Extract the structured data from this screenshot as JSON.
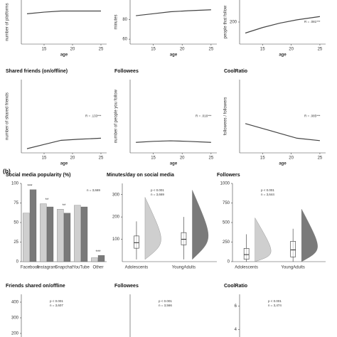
{
  "panel_label": "(b)",
  "chart_data": [
    {
      "type": "line",
      "ylabel": "number of platforms",
      "xlabel": "age",
      "xlim": [
        11,
        26
      ],
      "xticks": [
        15,
        20,
        25
      ],
      "ylim": [
        0,
        8
      ],
      "yticks": [],
      "x": [
        12,
        15,
        18,
        21,
        25
      ],
      "values": [
        5.5,
        5.8,
        6,
        6,
        6
      ],
      "color": "#444"
    },
    {
      "type": "line",
      "ylabel": "minutes",
      "xlabel": "age",
      "xlim": [
        11,
        26
      ],
      "xticks": [
        15,
        20,
        25
      ],
      "ylim": [
        55,
        100
      ],
      "yticks": [
        60,
        80
      ],
      "x": [
        12,
        15,
        18,
        21,
        25
      ],
      "values": [
        84,
        86,
        88,
        89,
        90
      ],
      "color": "#444"
    },
    {
      "type": "line",
      "ylabel": "people that follow",
      "xlabel": "age",
      "xlim": [
        11,
        26
      ],
      "xticks": [
        15,
        20,
        25
      ],
      "ylim": [
        0,
        400
      ],
      "yticks": [
        200
      ],
      "x": [
        12,
        15,
        18,
        21,
        25
      ],
      "values": [
        100,
        150,
        190,
        220,
        250
      ],
      "color": "#444",
      "annotations": [
        "R = .081***"
      ]
    },
    {
      "type": "line",
      "title": "Shared friends (on/offline)",
      "ylabel": "number of shared friends",
      "xlabel": "age",
      "xlim": [
        11,
        26
      ],
      "xticks": [
        15,
        20,
        25
      ],
      "ylim": [
        0,
        700
      ],
      "yticks": [],
      "x": [
        12,
        15,
        18,
        21,
        25
      ],
      "values": [
        40,
        80,
        120,
        130,
        140
      ],
      "color": "#444",
      "annotations": [
        "R = .133***"
      ]
    },
    {
      "type": "line",
      "title": "Followees",
      "ylabel": "number of people you follow",
      "xlabel": "age",
      "xlim": [
        11,
        26
      ],
      "xticks": [
        15,
        20,
        25
      ],
      "ylim": [
        0,
        700
      ],
      "yticks": [],
      "x": [
        12,
        15,
        18,
        21,
        25
      ],
      "values": [
        100,
        110,
        115,
        110,
        100
      ],
      "color": "#444",
      "annotations": [
        "R = .016***"
      ]
    },
    {
      "type": "line",
      "title": "CoolRatio",
      "ylabel": "followees / followers",
      "xlabel": "age",
      "xlim": [
        11,
        26
      ],
      "xticks": [
        15,
        20,
        25
      ],
      "ylim": [
        0,
        3
      ],
      "yticks": [],
      "x": [
        12,
        15,
        18,
        21,
        25
      ],
      "values": [
        1.2,
        1.0,
        0.8,
        0.6,
        0.5
      ],
      "color": "#444",
      "annotations": [
        "R = .085***"
      ]
    },
    {
      "type": "bar",
      "title": "Social media popularity (%)",
      "categories": [
        "Facebook",
        "Instagram",
        "Snapchat",
        "YouTube",
        "Other"
      ],
      "ylim": [
        0,
        100
      ],
      "yticks": [
        0,
        25,
        50,
        75,
        100
      ],
      "series": [
        {
          "name": "Adolescents",
          "color": "#cfcfcf",
          "values": [
            62,
            74,
            67,
            72,
            5
          ]
        },
        {
          "name": "YoungAdults",
          "color": "#7a7a7a",
          "values": [
            92,
            70,
            62,
            70,
            8
          ]
        }
      ],
      "significance": [
        "***",
        "**",
        "**",
        null,
        "***"
      ],
      "annotations": [
        "n = 3,669"
      ]
    },
    {
      "type": "box",
      "title": "Minutes/day on social media",
      "categories": [
        "Adolescents",
        "YoungAdults"
      ],
      "ylim": [
        0,
        350
      ],
      "yticks": [
        100,
        200,
        300
      ],
      "boxes": [
        {
          "color": "#cfcfcf",
          "min": 10,
          "q1": 60,
          "median": 85,
          "q3": 115,
          "max": 180
        },
        {
          "color": "#7a7a7a",
          "min": 10,
          "q1": 75,
          "median": 100,
          "q3": 130,
          "max": 200
        }
      ],
      "annotations": [
        "p < 0.001",
        "n = 3,669"
      ]
    },
    {
      "type": "box",
      "title": "Followers",
      "categories": [
        "Adolescents",
        "YoungAdults"
      ],
      "ylim": [
        0,
        1000
      ],
      "yticks": [
        0,
        250,
        500,
        750,
        1000
      ],
      "boxes": [
        {
          "color": "#cfcfcf",
          "min": 0,
          "q1": 30,
          "median": 90,
          "q3": 170,
          "max": 350
        },
        {
          "color": "#7a7a7a",
          "min": 0,
          "q1": 60,
          "median": 150,
          "q3": 260,
          "max": 420
        }
      ],
      "annotations": [
        "p < 0.001",
        "n = 3,644"
      ]
    },
    {
      "type": "box",
      "title": "Friends shared on/offline",
      "ylim": [
        150,
        450
      ],
      "yticks": [
        200,
        300,
        400
      ],
      "annotations": [
        "p < 0.001",
        "n = 3,607"
      ]
    },
    {
      "type": "box",
      "title": "Followees",
      "ylim": [
        0,
        1000
      ],
      "yticks": [],
      "annotations": [
        "p < 0.001",
        "n = 3,566"
      ]
    },
    {
      "type": "box",
      "title": "CoolRatio",
      "ylim": [
        3,
        7
      ],
      "yticks": [
        4,
        6
      ],
      "annotations": [
        "p < 0.001",
        "n = 3,474"
      ]
    }
  ]
}
